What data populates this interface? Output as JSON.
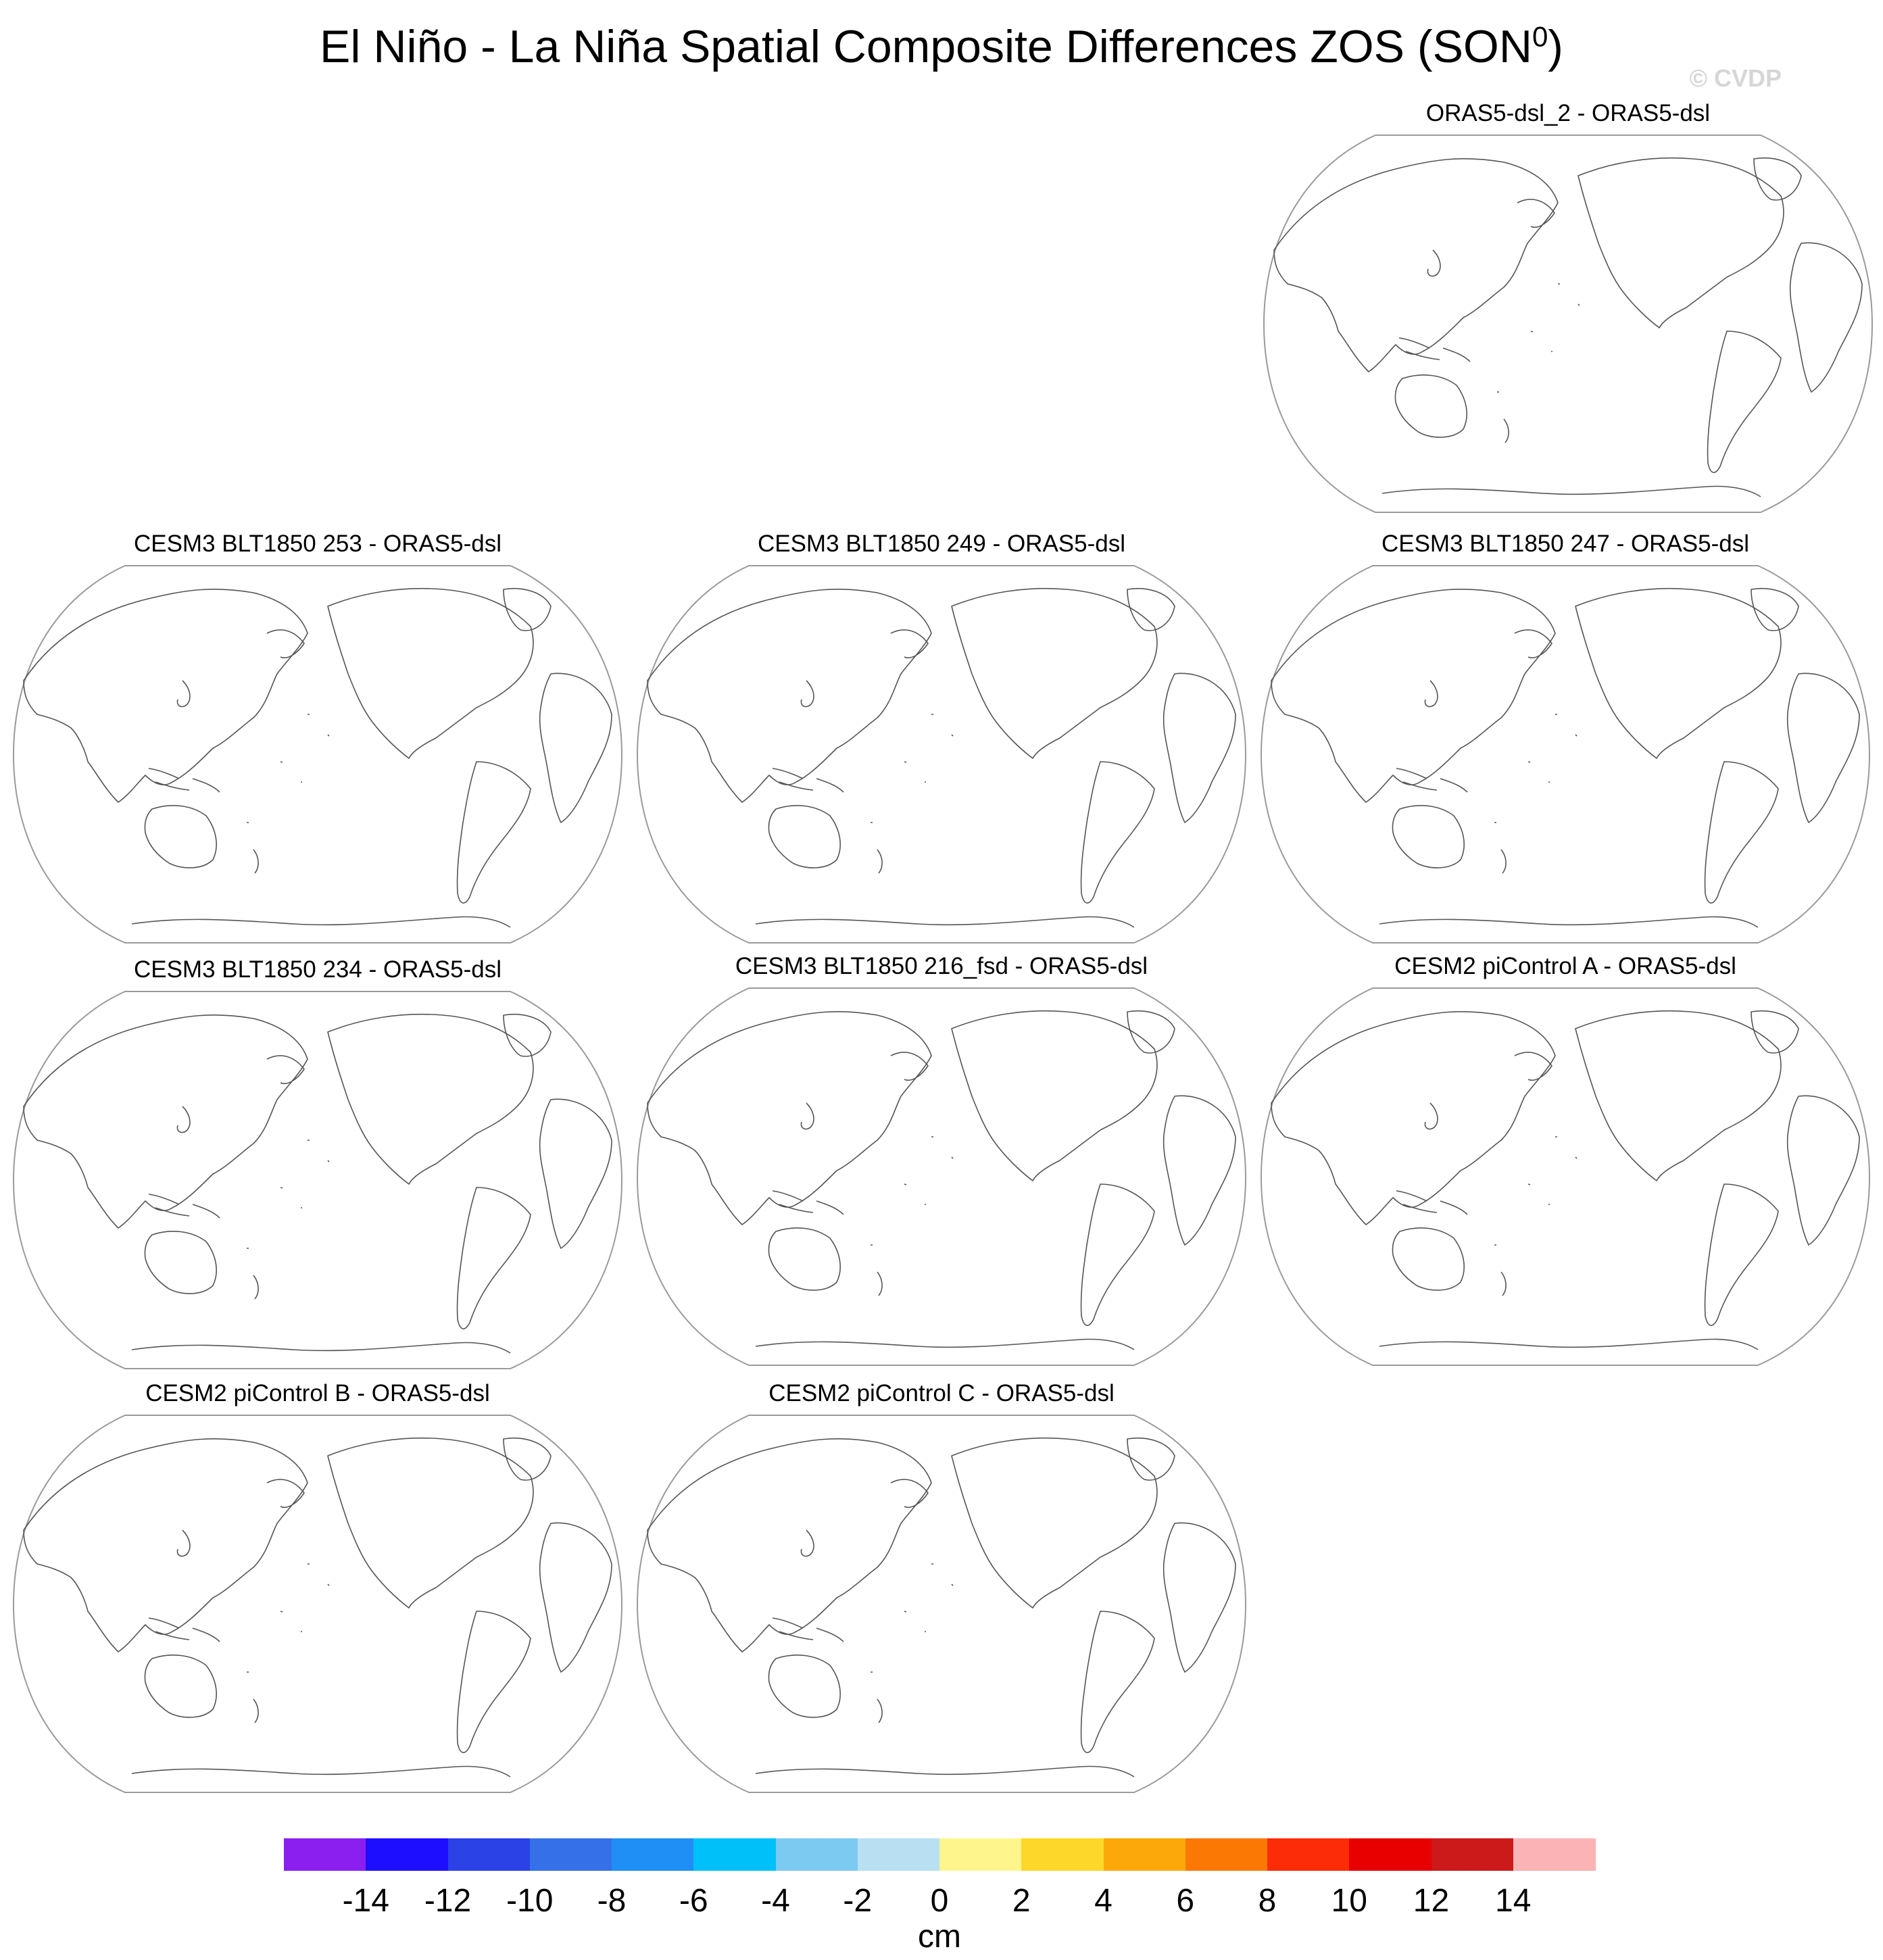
{
  "title": {
    "text": "El Niño - La Niña Spatial Composite Differences ZOS (SON",
    "superscript": "0",
    "close": ")"
  },
  "watermark": "© CVDP",
  "panels": [
    {
      "title": "ORAS5-dsl_2 - ORAS5-dsl"
    },
    {
      "title": "CESM3 BLT1850 253 - ORAS5-dsl"
    },
    {
      "title": "CESM3 BLT1850 249 - ORAS5-dsl"
    },
    {
      "title": "CESM3 BLT1850 247 - ORAS5-dsl"
    },
    {
      "title": "CESM3 BLT1850 234 - ORAS5-dsl"
    },
    {
      "title": "CESM3 BLT1850 216_fsd - ORAS5-dsl"
    },
    {
      "title": "CESM2 piControl A - ORAS5-dsl"
    },
    {
      "title": "CESM2 piControl B - ORAS5-dsl"
    },
    {
      "title": "CESM2 piControl C - ORAS5-dsl"
    }
  ],
  "colorbar": {
    "units": "cm",
    "tick_labels": [
      "-14",
      "-12",
      "-10",
      "-8",
      "-6",
      "-4",
      "-2",
      "0",
      "2",
      "4",
      "6",
      "8",
      "10",
      "12",
      "14"
    ],
    "colors": [
      "#8a1ff0",
      "#1e0eff",
      "#2b42e6",
      "#3570e8",
      "#1f8ff5",
      "#00c0fa",
      "#7ccaf2",
      "#b8e0f2",
      "#fef68c",
      "#fdd72a",
      "#fca80a",
      "#fb7804",
      "#fb2c07",
      "#e80000",
      "#cc1a1a",
      "#fbb3b6"
    ]
  }
}
